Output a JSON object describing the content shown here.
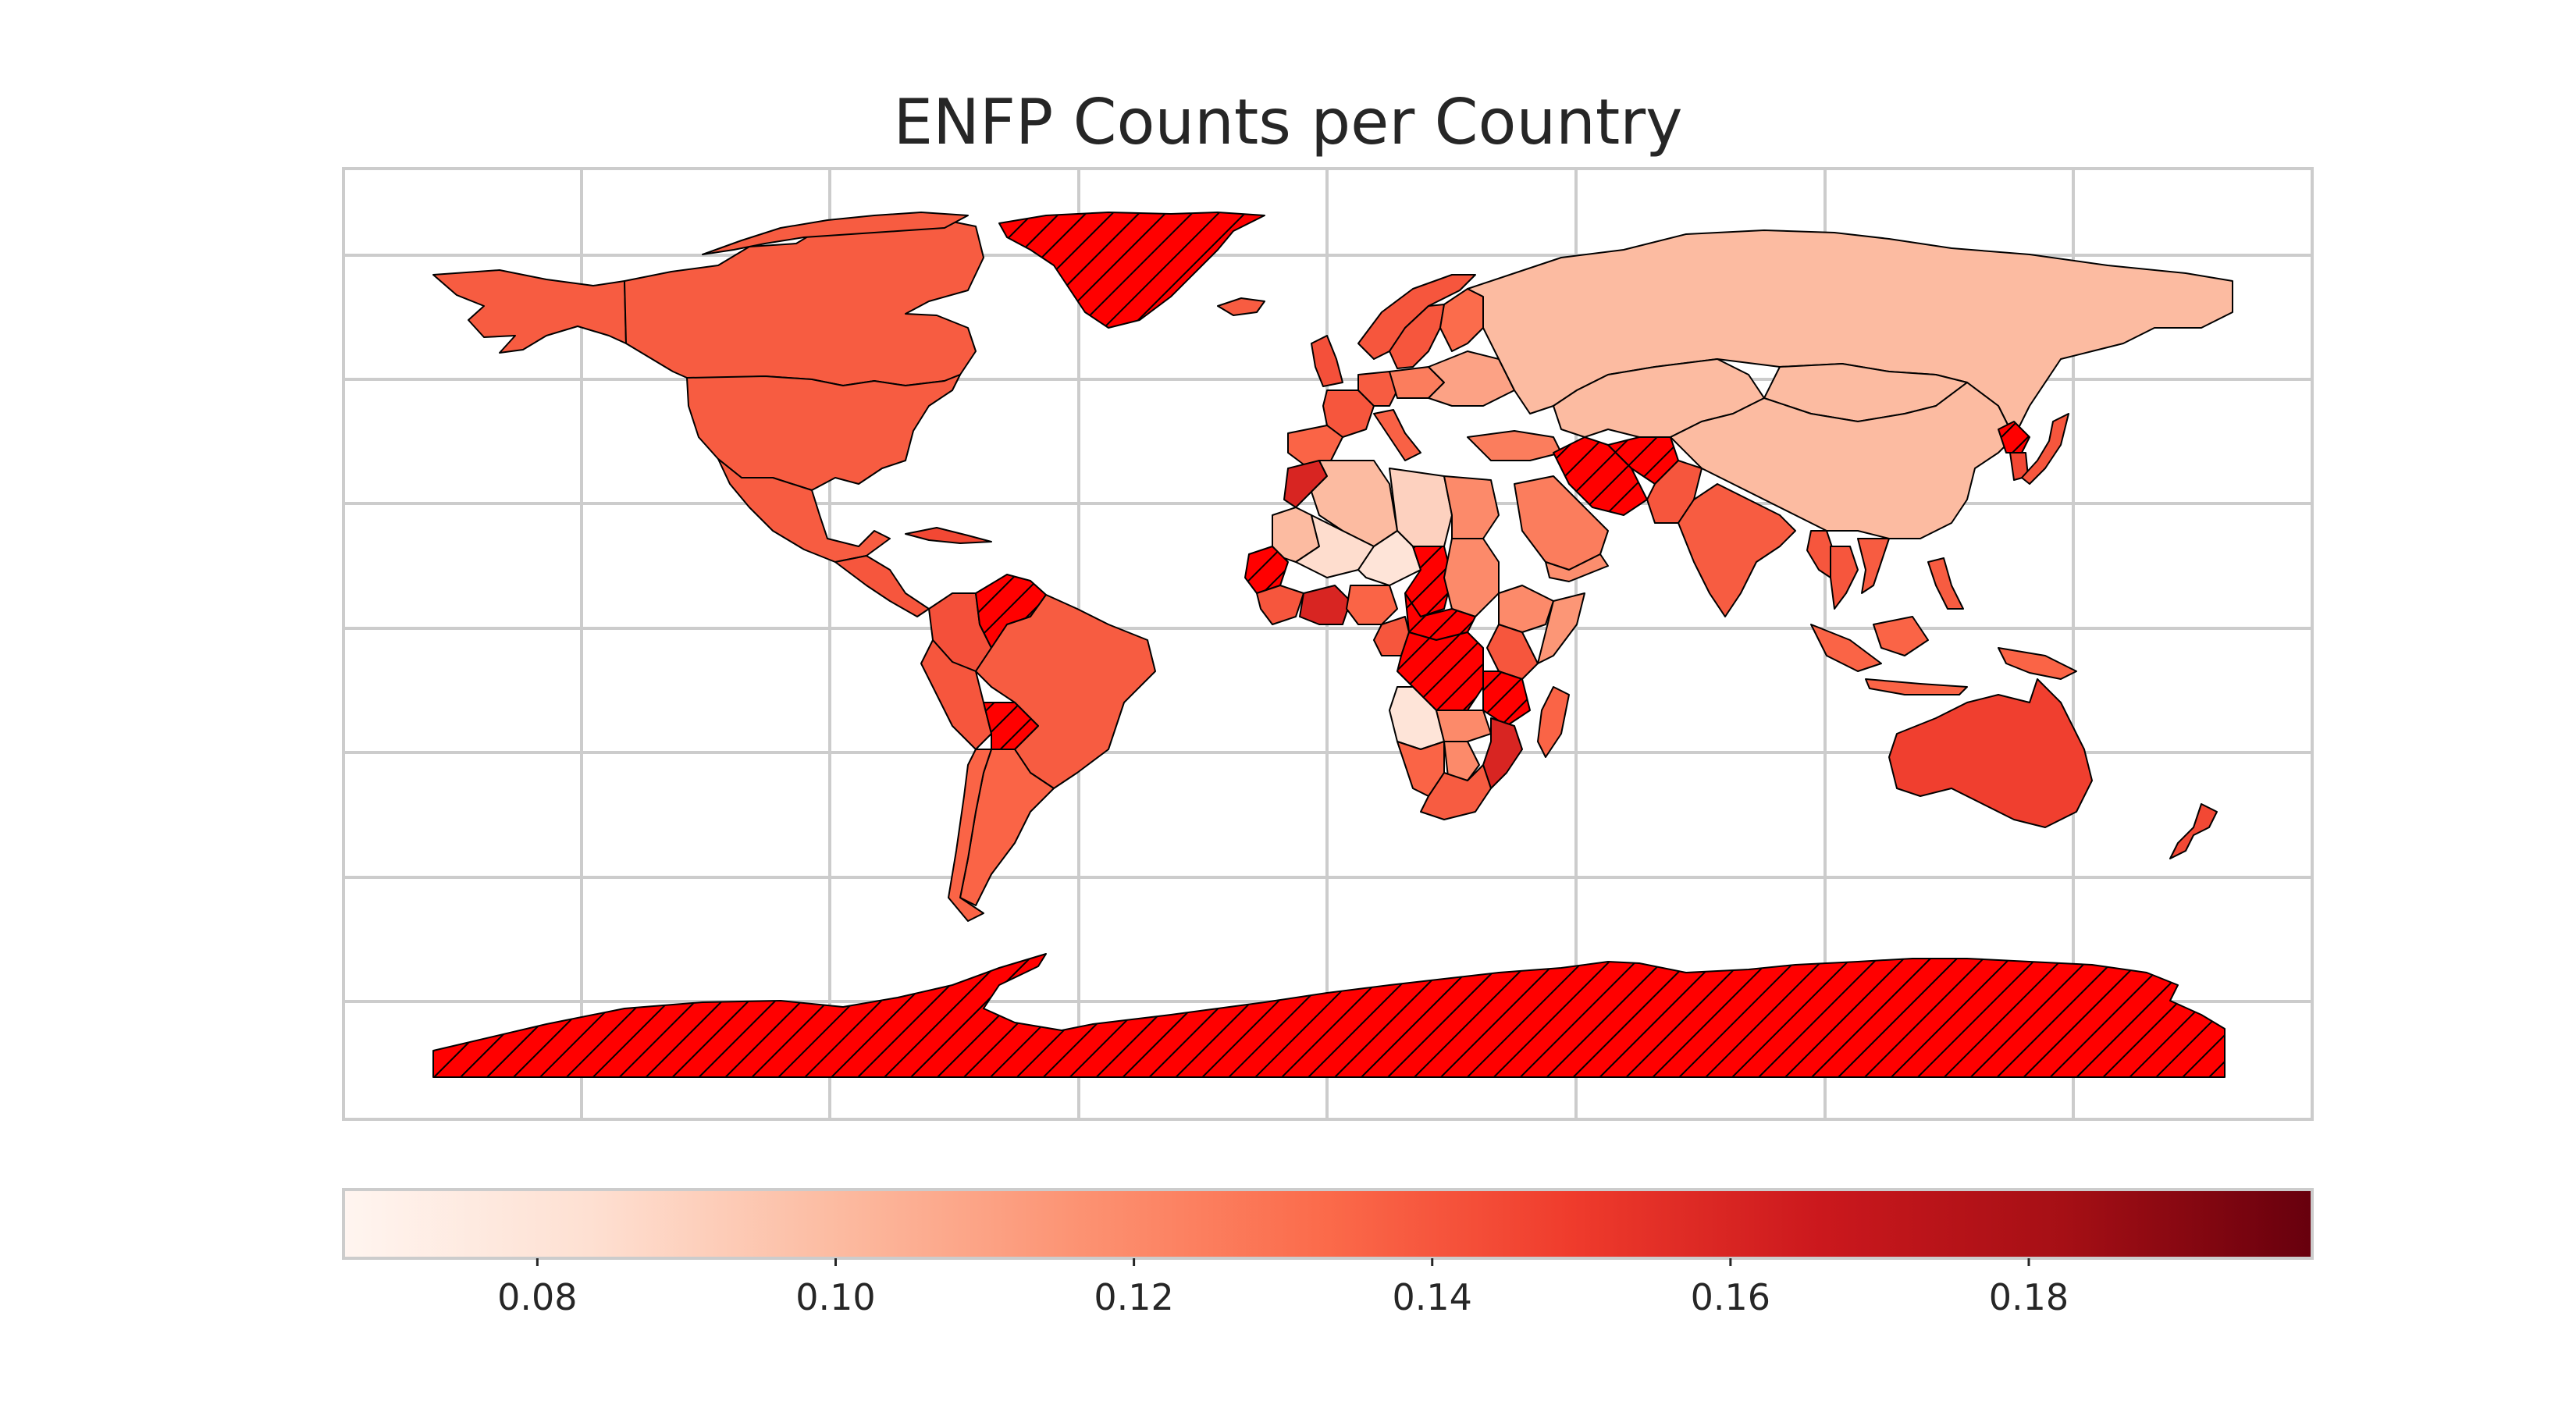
{
  "title": "ENFP Counts per Country",
  "colors": {
    "cmap_stops": [
      "#fff5f0",
      "#fee0d2",
      "#fcbba1",
      "#fc9272",
      "#fb6a4a",
      "#ef3b2c",
      "#cb181d",
      "#a50f15",
      "#67000d"
    ],
    "missing_fill": "#ff0000",
    "grid": "#cccccc",
    "frame": "#cccccc"
  },
  "chart_data": {
    "type": "choropleth",
    "title": "ENFP Counts per Country",
    "colormap": "Reds",
    "colorbar": {
      "range": [
        0.067,
        0.199
      ],
      "ticks": [
        0.08,
        0.1,
        0.12,
        0.14,
        0.16,
        0.18
      ],
      "tick_labels": [
        "0.08",
        "0.10",
        "0.12",
        "0.14",
        "0.16",
        "0.18"
      ],
      "orientation": "horizontal",
      "placement": "bottom"
    },
    "missing_data": "hatched",
    "grid": true,
    "regions": [
      {
        "name": "Canada",
        "value": 0.138
      },
      {
        "name": "Alaska",
        "value": 0.138
      },
      {
        "name": "United States",
        "value": 0.138
      },
      {
        "name": "Mexico",
        "value": 0.138
      },
      {
        "name": "Central America",
        "value": 0.14
      },
      {
        "name": "Cuba",
        "value": 0.145
      },
      {
        "name": "Venezuela",
        "value": null
      },
      {
        "name": "Colombia",
        "value": 0.142
      },
      {
        "name": "Peru",
        "value": 0.14
      },
      {
        "name": "Brazil",
        "value": 0.138
      },
      {
        "name": "Bolivia",
        "value": null
      },
      {
        "name": "Argentina",
        "value": 0.135
      },
      {
        "name": "Chile",
        "value": 0.135
      },
      {
        "name": "Greenland",
        "value": null
      },
      {
        "name": "Iceland",
        "value": 0.138
      },
      {
        "name": "Norway",
        "value": 0.14
      },
      {
        "name": "Sweden",
        "value": 0.14
      },
      {
        "name": "Finland",
        "value": 0.132
      },
      {
        "name": "United Kingdom",
        "value": 0.142
      },
      {
        "name": "France",
        "value": 0.14
      },
      {
        "name": "Spain",
        "value": 0.135
      },
      {
        "name": "Germany",
        "value": 0.138
      },
      {
        "name": "Italy",
        "value": 0.136
      },
      {
        "name": "Poland",
        "value": 0.125
      },
      {
        "name": "Ukraine",
        "value": 0.11
      },
      {
        "name": "Russia",
        "value": 0.1
      },
      {
        "name": "Kazakhstan",
        "value": 0.1
      },
      {
        "name": "Mongolia",
        "value": 0.1
      },
      {
        "name": "China",
        "value": 0.1
      },
      {
        "name": "Japan",
        "value": 0.14
      },
      {
        "name": "North Korea",
        "value": null
      },
      {
        "name": "South Korea",
        "value": 0.145
      },
      {
        "name": "Turkey",
        "value": 0.125
      },
      {
        "name": "Iran",
        "value": null
      },
      {
        "name": "Afghanistan",
        "value": null
      },
      {
        "name": "Saudi Arabia",
        "value": 0.125
      },
      {
        "name": "Yemen",
        "value": 0.118
      },
      {
        "name": "Pakistan",
        "value": 0.14
      },
      {
        "name": "India",
        "value": 0.138
      },
      {
        "name": "Myanmar",
        "value": 0.14
      },
      {
        "name": "Thailand",
        "value": 0.14
      },
      {
        "name": "Vietnam",
        "value": 0.138
      },
      {
        "name": "Philippines",
        "value": 0.138
      },
      {
        "name": "Indonesia",
        "value": 0.135
      },
      {
        "name": "Papua New Guinea",
        "value": 0.135
      },
      {
        "name": "Australia",
        "value": 0.148
      },
      {
        "name": "New Zealand",
        "value": 0.145
      },
      {
        "name": "Morocco",
        "value": 0.16
      },
      {
        "name": "Algeria",
        "value": 0.1
      },
      {
        "name": "Libya",
        "value": 0.09
      },
      {
        "name": "Egypt",
        "value": 0.12
      },
      {
        "name": "Mauritania",
        "value": 0.1
      },
      {
        "name": "Mali",
        "value": 0.085
      },
      {
        "name": "Niger",
        "value": 0.08
      },
      {
        "name": "Chad",
        "value": null
      },
      {
        "name": "Sudan",
        "value": 0.12
      },
      {
        "name": "Ethiopia",
        "value": 0.12
      },
      {
        "name": "Somalia",
        "value": 0.115
      },
      {
        "name": "Senegal",
        "value": null
      },
      {
        "name": "Guinea",
        "value": 0.14
      },
      {
        "name": "Ghana",
        "value": 0.16
      },
      {
        "name": "Nigeria",
        "value": 0.135
      },
      {
        "name": "Central African Republic",
        "value": null
      },
      {
        "name": "Cameroon",
        "value": 0.14
      },
      {
        "name": "DR Congo",
        "value": null
      },
      {
        "name": "Kenya",
        "value": 0.14
      },
      {
        "name": "Tanzania",
        "value": null
      },
      {
        "name": "Angola",
        "value": 0.08
      },
      {
        "name": "Zambia",
        "value": 0.12
      },
      {
        "name": "Mozambique",
        "value": 0.16
      },
      {
        "name": "Namibia",
        "value": 0.135
      },
      {
        "name": "Botswana",
        "value": 0.12
      },
      {
        "name": "South Africa",
        "value": 0.138
      },
      {
        "name": "Madagascar",
        "value": 0.135
      },
      {
        "name": "Antarctica",
        "value": null
      }
    ]
  }
}
